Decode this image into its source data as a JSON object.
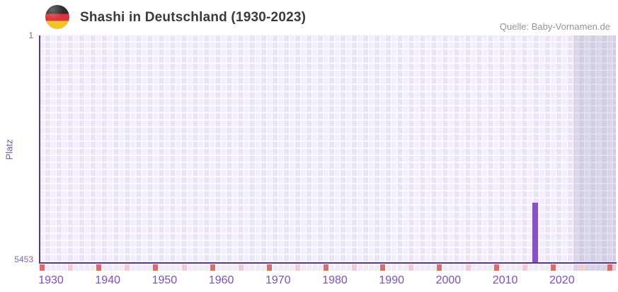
{
  "header": {
    "flag_icon": "german-flag-circle",
    "flag_colors": {
      "black": "#2c2c2e",
      "red": "#d8353c",
      "gold": "#f0c42d"
    }
  },
  "chart_data": {
    "type": "bar",
    "title": "Shashi in Deutschland (1930-2023)",
    "source": "Quelle: Baby-Vornamen.de",
    "xlabel": "",
    "ylabel": "Platz",
    "y_axis": {
      "inverted": true,
      "min": 1,
      "max": 5453,
      "tick_labels": [
        "1",
        "5453"
      ]
    },
    "x_axis": {
      "range_start": 1930,
      "range_end": 2023,
      "ticks": [
        1930,
        1940,
        1950,
        1960,
        1970,
        1980,
        1990,
        2000,
        2010,
        2020
      ]
    },
    "series": [
      {
        "name": "Shashi",
        "color": "#8a50c6",
        "points": [
          {
            "year": 2016,
            "rank": 4030
          }
        ]
      }
    ],
    "grid": {
      "checkered": true,
      "col_light": "#f3eefb",
      "col_alt": "#eae4f6",
      "axis_color": "#55368f",
      "tick_color": "#7c50b5"
    },
    "axis_markers": {
      "red_color": "#e0696e",
      "pink_color": "#f4cbd3",
      "red_years": [
        1930,
        1940,
        1950,
        1960,
        1970,
        1980,
        1990,
        2000,
        2010,
        2020,
        2030
      ],
      "pink_years": [
        1935,
        1945,
        1955,
        1965,
        1975,
        1985,
        1995,
        2005,
        2015,
        2025
      ]
    },
    "shaded_region": {
      "from_year": 2024,
      "to_year": 2031
    }
  }
}
